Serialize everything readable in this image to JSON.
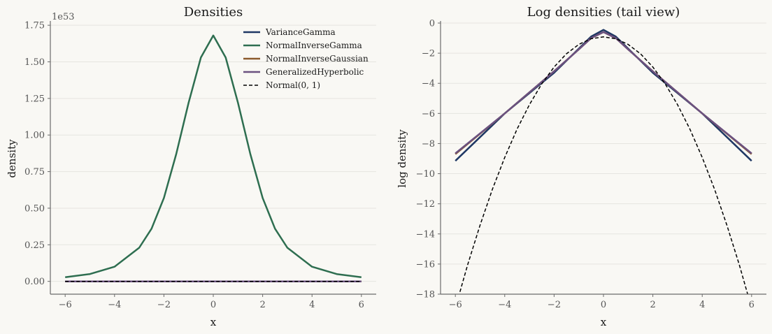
{
  "chart_data": [
    {
      "type": "line",
      "title": "Densities",
      "xlabel": "x",
      "ylabel": "density",
      "y_scale_label": "1e53",
      "xlim": [
        -6.6,
        6.6
      ],
      "ylim": [
        -0.0875,
        1.765
      ],
      "xticks": [
        -6,
        -4,
        -2,
        0,
        2,
        4,
        6
      ],
      "xtick_labels": [
        "−6",
        "−4",
        "−2",
        "0",
        "2",
        "4",
        "6"
      ],
      "yticks": [
        0.0,
        0.25,
        0.5,
        0.75,
        1.0,
        1.25,
        1.5,
        1.75
      ],
      "ytick_labels": [
        "0.00",
        "0.25",
        "0.50",
        "0.75",
        "1.00",
        "1.25",
        "1.50",
        "1.75"
      ],
      "grid": "horizontal",
      "legend_position": "top-right",
      "series": [
        {
          "name": "VarianceGamma",
          "color": "#1f3864",
          "dash": "solid",
          "x": [
            -6,
            6
          ],
          "y": [
            0,
            0
          ]
        },
        {
          "name": "NormalInverseGamma",
          "color": "#2e6e50",
          "dash": "solid",
          "x": [
            -6,
            -5,
            -4,
            -3,
            -2.5,
            -2,
            -1.5,
            -1,
            -0.5,
            0,
            0.5,
            1,
            1.5,
            2,
            2.5,
            3,
            4,
            5,
            6
          ],
          "y": [
            0.028,
            0.05,
            0.1,
            0.23,
            0.36,
            0.57,
            0.87,
            1.22,
            1.53,
            1.68,
            1.53,
            1.22,
            0.87,
            0.57,
            0.36,
            0.23,
            0.1,
            0.05,
            0.028
          ]
        },
        {
          "name": "NormalInverseGaussian",
          "color": "#8b5a2b",
          "dash": "solid",
          "x": [
            -6,
            6
          ],
          "y": [
            0,
            0
          ]
        },
        {
          "name": "GeneralizedHyperbolic",
          "color": "#6b5180",
          "dash": "solid",
          "x": [
            -6,
            6
          ],
          "y": [
            0,
            0
          ]
        },
        {
          "name": "Normal(0, 1)",
          "color": "#000000",
          "dash": "dashed",
          "x": [
            -6,
            6
          ],
          "y": [
            0,
            0
          ]
        }
      ]
    },
    {
      "type": "line",
      "title": "Log densities (tail view)",
      "xlabel": "x",
      "ylabel": "log density",
      "xlim": [
        -6.6,
        6.6
      ],
      "ylim": [
        -18,
        0
      ],
      "xticks": [
        -6,
        -4,
        -2,
        0,
        2,
        4,
        6
      ],
      "xtick_labels": [
        "−6",
        "−4",
        "−2",
        "0",
        "2",
        "4",
        "6"
      ],
      "yticks": [
        0,
        -2,
        -4,
        -6,
        -8,
        -10,
        -12,
        -14,
        -16,
        -18
      ],
      "ytick_labels": [
        "0",
        "−2",
        "−4",
        "−6",
        "−8",
        "−10",
        "−12",
        "−14",
        "−16",
        "−18"
      ],
      "grid": "horizontal",
      "legend_position": "none",
      "series": [
        {
          "name": "VarianceGamma",
          "color": "#1f3864",
          "dash": "solid",
          "x": [
            -6,
            -4,
            -2,
            -1,
            -0.5,
            0,
            0.5,
            1,
            2,
            4,
            6
          ],
          "y": [
            -9.15,
            -6.0,
            -3.3,
            -1.7,
            -0.9,
            -0.45,
            -0.9,
            -1.7,
            -3.3,
            -6.0,
            -9.15
          ]
        },
        {
          "name": "NormalInverseGamma",
          "color": "#2e6e50",
          "dash": "solid",
          "x": [],
          "y": []
        },
        {
          "name": "NormalInverseGaussian",
          "color": "#8b5a2b",
          "dash": "solid",
          "x": [
            -6,
            -4,
            -2,
            -1,
            -0.5,
            0,
            0.5,
            1,
            2,
            4,
            6
          ],
          "y": [
            -8.7,
            -6.0,
            -3.2,
            -1.75,
            -1.0,
            -0.6,
            -1.0,
            -1.75,
            -3.2,
            -6.0,
            -8.7
          ]
        },
        {
          "name": "GeneralizedHyperbolic",
          "color": "#6b5180",
          "dash": "solid",
          "x": [
            -6,
            -4,
            -2,
            -1,
            -0.5,
            0,
            0.5,
            1,
            2,
            4,
            6
          ],
          "y": [
            -8.65,
            -6.0,
            -3.2,
            -1.75,
            -1.0,
            -0.6,
            -1.0,
            -1.75,
            -3.2,
            -6.0,
            -8.65
          ]
        },
        {
          "name": "Normal(0, 1)",
          "color": "#000000",
          "dash": "dashed",
          "x": [
            -6,
            -5.5,
            -5,
            -4.5,
            -4,
            -3.5,
            -3,
            -2.5,
            -2,
            -1.5,
            -1,
            -0.5,
            0,
            0.5,
            1,
            1.5,
            2,
            2.5,
            3,
            3.5,
            4,
            4.5,
            5,
            5.5,
            6
          ],
          "y": [
            -18.92,
            -16.04,
            -13.42,
            -11.04,
            -8.92,
            -7.04,
            -5.42,
            -4.04,
            -2.92,
            -2.04,
            -1.42,
            -1.04,
            -0.92,
            -1.04,
            -1.42,
            -2.04,
            -2.92,
            -4.04,
            -5.42,
            -7.04,
            -8.92,
            -11.04,
            -13.42,
            -16.04,
            -18.92
          ]
        }
      ]
    }
  ]
}
